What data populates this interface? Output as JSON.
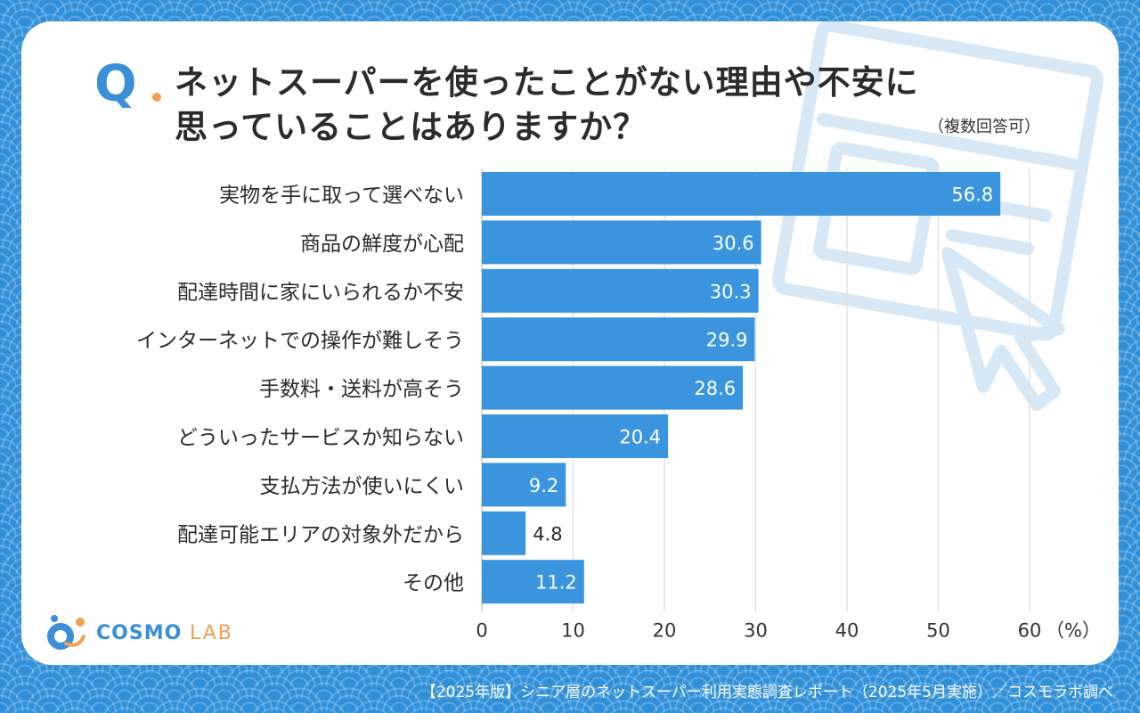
{
  "question": {
    "mark": "Q",
    "title_line1": "ネットスーパーを使ったことがない理由や不安に",
    "title_line2": "思っていることはありますか？",
    "note": "（複数回答可）"
  },
  "chart_data": {
    "type": "bar",
    "orientation": "horizontal",
    "categories": [
      "実物を手に取って選べない",
      "商品の鮮度が心配",
      "配達時間に家にいられるか不安",
      "インターネットでの操作が難しそう",
      "手数料・送料が高そう",
      "どういったサービスか知らない",
      "支払方法が使いにくい",
      "配達可能エリアの対象外だから",
      "その他"
    ],
    "values": [
      56.8,
      30.6,
      30.3,
      29.9,
      28.6,
      20.4,
      9.2,
      4.8,
      11.2
    ],
    "value_labels": [
      "56.8",
      "30.6",
      "30.3",
      "29.9",
      "28.6",
      "20.4",
      "9.2",
      "4.8",
      "11.2"
    ],
    "xlim": [
      0,
      60
    ],
    "x_ticks": [
      0,
      10,
      20,
      30,
      40,
      50,
      60
    ],
    "x_unit": "（%）",
    "grid": true,
    "bar_color": "#3a95de",
    "grid_color": "#e3e3e3"
  },
  "logo": {
    "name": "COSMO",
    "suffix": "LAB",
    "colors": {
      "blue": "#3a8fd6",
      "orange": "#f0a050"
    }
  },
  "footer": "【2025年版】シニア層のネットスーパー利用実態調査レポート（2025年5月実施）／コスモラボ調べ"
}
